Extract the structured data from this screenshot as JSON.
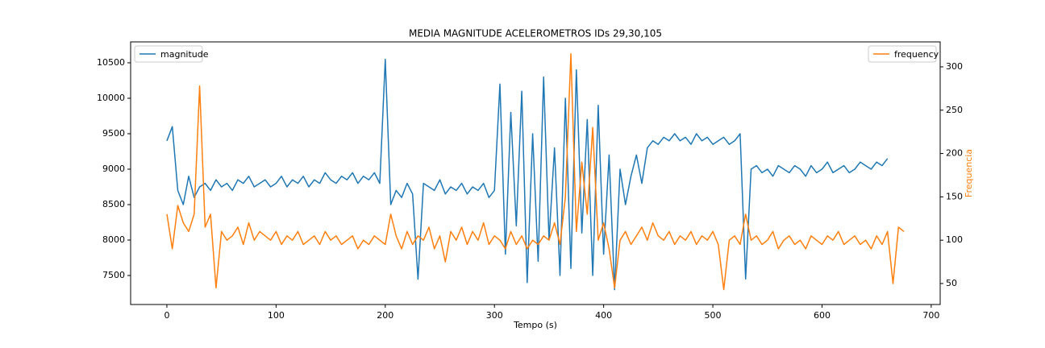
{
  "chart_data": {
    "type": "line",
    "title": "MEDIA MAGNITUDE ACELEROMETROS IDs 29,30,105",
    "x_label": "Tempo (s)",
    "y2_label": "Frequencia",
    "xlim": [
      -33.2,
      708.2
    ],
    "xticks": [
      0,
      100,
      200,
      300,
      400,
      500,
      600,
      700
    ],
    "ylim": [
      7091,
      10795
    ],
    "yticks": [
      7500,
      8000,
      8500,
      9000,
      9500,
      10000,
      10500
    ],
    "y2lim": [
      25.8,
      328.8
    ],
    "y2ticks": [
      50,
      100,
      150,
      200,
      250,
      300
    ],
    "grid": false,
    "x": [
      0,
      5,
      10,
      15,
      20,
      25,
      30,
      35,
      40,
      45,
      50,
      55,
      60,
      65,
      70,
      75,
      80,
      85,
      90,
      95,
      100,
      105,
      110,
      115,
      120,
      125,
      130,
      135,
      140,
      145,
      150,
      155,
      160,
      165,
      170,
      175,
      180,
      185,
      190,
      195,
      200,
      205,
      210,
      215,
      220,
      225,
      230,
      235,
      240,
      245,
      250,
      255,
      260,
      265,
      270,
      275,
      280,
      285,
      290,
      295,
      300,
      305,
      310,
      315,
      320,
      325,
      330,
      335,
      340,
      345,
      350,
      355,
      360,
      365,
      370,
      375,
      380,
      385,
      390,
      395,
      400,
      405,
      410,
      415,
      420,
      425,
      430,
      435,
      440,
      445,
      450,
      455,
      460,
      465,
      470,
      475,
      480,
      485,
      490,
      495,
      500,
      505,
      510,
      515,
      520,
      525,
      530,
      535,
      540,
      545,
      550,
      555,
      560,
      565,
      570,
      575,
      580,
      585,
      590,
      595,
      600,
      605,
      610,
      615,
      620,
      625,
      630,
      635,
      640,
      645,
      650,
      655,
      660,
      665,
      670,
      675
    ],
    "series": [
      {
        "name": "magnitude",
        "color": "#1f77b4",
        "axis": "y",
        "legend": "upper left",
        "values": [
          9400,
          9600,
          8700,
          8500,
          8900,
          8600,
          8750,
          8800,
          8700,
          8850,
          8750,
          8800,
          8700,
          8850,
          8800,
          8900,
          8750,
          8800,
          8850,
          8750,
          8800,
          8900,
          8750,
          8850,
          8800,
          8900,
          8750,
          8850,
          8800,
          8950,
          8850,
          8800,
          8900,
          8850,
          8950,
          8800,
          8900,
          8850,
          8950,
          8800,
          10550,
          8500,
          8700,
          8600,
          8800,
          8650,
          7450,
          8800,
          8750,
          8700,
          8850,
          8650,
          8750,
          8700,
          8800,
          8650,
          8750,
          8700,
          8800,
          8600,
          8700,
          10200,
          7800,
          9800,
          8200,
          10100,
          7400,
          9500,
          7700,
          10300,
          8000,
          9300,
          7500,
          10000,
          7600,
          10400,
          8100,
          9700,
          7500,
          9900,
          7800,
          9200,
          7300,
          9000,
          8500,
          8900,
          9200,
          8800,
          9300,
          9400,
          9350,
          9450,
          9400,
          9500,
          9400,
          9450,
          9350,
          9500,
          9400,
          9450,
          9350,
          9400,
          9450,
          9350,
          9400,
          9500,
          7450,
          9000,
          9050,
          8950,
          9000,
          8900,
          9050,
          9000,
          8950,
          9050,
          9000,
          8900,
          9050,
          8950,
          9000,
          9100,
          8950,
          9000,
          9050,
          8950,
          9000,
          9100,
          9050,
          9000,
          9100,
          9050,
          9150,
          null,
          null,
          null
        ]
      },
      {
        "name": "frequency",
        "color": "#ff7f0e",
        "axis": "y2",
        "legend": "upper right",
        "values": [
          130,
          90,
          140,
          120,
          110,
          130,
          278,
          115,
          130,
          45,
          110,
          100,
          105,
          115,
          95,
          120,
          100,
          110,
          105,
          100,
          110,
          95,
          105,
          100,
          110,
          95,
          100,
          105,
          95,
          110,
          100,
          105,
          95,
          100,
          105,
          90,
          100,
          95,
          105,
          100,
          95,
          130,
          105,
          90,
          110,
          95,
          105,
          100,
          115,
          90,
          105,
          75,
          110,
          100,
          115,
          95,
          110,
          100,
          120,
          95,
          105,
          100,
          90,
          110,
          95,
          105,
          90,
          100,
          95,
          105,
          100,
          120,
          95,
          150,
          315,
          110,
          190,
          130,
          230,
          100,
          120,
          90,
          45,
          100,
          110,
          95,
          105,
          115,
          100,
          120,
          105,
          100,
          110,
          95,
          105,
          100,
          110,
          95,
          105,
          100,
          110,
          95,
          43,
          100,
          105,
          95,
          130,
          100,
          105,
          95,
          100,
          110,
          90,
          100,
          105,
          95,
          100,
          90,
          105,
          100,
          95,
          105,
          100,
          110,
          95,
          100,
          105,
          95,
          100,
          90,
          105,
          95,
          110,
          50,
          115,
          110
        ]
      }
    ]
  }
}
